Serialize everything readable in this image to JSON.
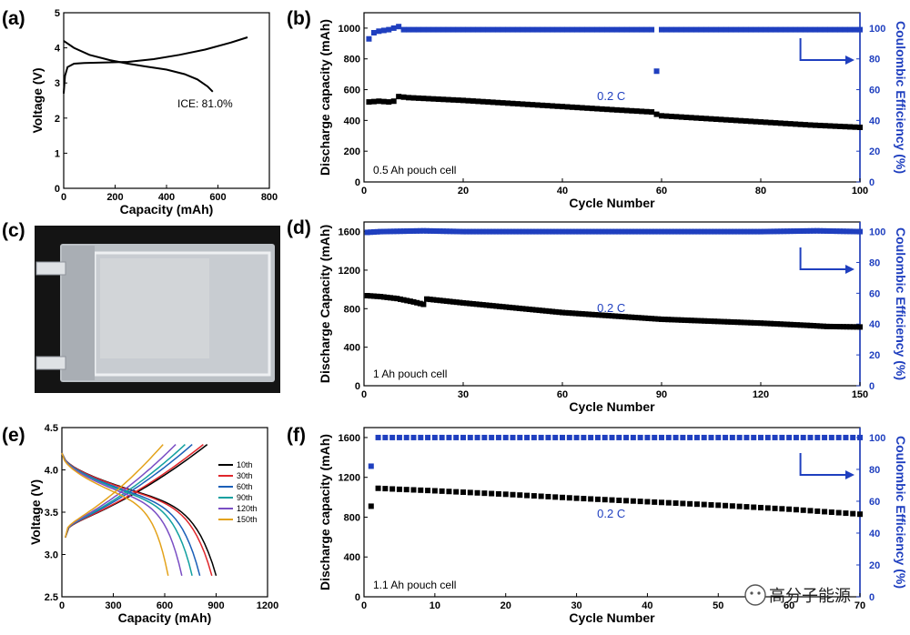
{
  "colors": {
    "black_series": "#000000",
    "blue_series": "#1f3fbf",
    "photo_bg": "#121212",
    "pouch": "#c9cdd2"
  },
  "watermark": {
    "text": "高分子能源",
    "icon": "wechat-icon"
  },
  "photo": {
    "label": "(c)",
    "description_icon": "pouch-cell-photo"
  },
  "chart_data": [
    {
      "id": "a",
      "label": "(a)",
      "type": "line",
      "xlabel": "Capacity (mAh)",
      "ylabel": "Voltage (V)",
      "xlim": [
        0,
        800
      ],
      "ylim": [
        0,
        5
      ],
      "xticks": [
        0,
        200,
        400,
        600,
        800
      ],
      "yticks": [
        0,
        1,
        2,
        3,
        4,
        5
      ],
      "annotation": "ICE: 81.0%",
      "series": [
        {
          "name": "charge",
          "color": "#000000",
          "x": [
            0,
            5,
            15,
            40,
            80,
            150,
            250,
            350,
            450,
            550,
            650,
            715
          ],
          "y": [
            2.7,
            3.2,
            3.45,
            3.55,
            3.57,
            3.58,
            3.6,
            3.68,
            3.8,
            3.95,
            4.15,
            4.3
          ]
        },
        {
          "name": "discharge",
          "color": "#000000",
          "x": [
            0,
            40,
            100,
            180,
            250,
            320,
            400,
            470,
            520,
            560,
            580
          ],
          "y": [
            4.2,
            4.0,
            3.8,
            3.65,
            3.55,
            3.47,
            3.38,
            3.25,
            3.1,
            2.9,
            2.75
          ]
        }
      ]
    },
    {
      "id": "b",
      "label": "(b)",
      "type": "scatter",
      "xlabel": "Cycle Number",
      "ylabel": "Discharge capacity (mAh)",
      "ylabel_right": "Coulombic Efficiency (%)",
      "xlim": [
        0,
        100
      ],
      "ylim": [
        0,
        1100
      ],
      "ylim_right": [
        0,
        110
      ],
      "xticks": [
        0,
        20,
        40,
        60,
        80,
        100
      ],
      "yticks": [
        0,
        200,
        400,
        600,
        800,
        1000
      ],
      "yticks_right": [
        0,
        20,
        40,
        60,
        80,
        100
      ],
      "annotation": "0.2 C",
      "cell_label": "0.5 Ah pouch cell",
      "capacity": {
        "x": [
          1,
          3,
          5,
          6,
          7,
          9,
          20,
          30,
          40,
          50,
          58,
          59,
          60,
          70,
          80,
          90,
          100
        ],
        "y": [
          520,
          525,
          520,
          525,
          555,
          548,
          530,
          510,
          490,
          470,
          455,
          440,
          430,
          410,
          390,
          370,
          355
        ]
      },
      "efficiency": {
        "x": [
          1,
          2,
          3,
          5,
          7,
          8,
          20,
          40,
          58,
          59,
          60,
          80,
          100
        ],
        "y": [
          93,
          97,
          98,
          99,
          101,
          99,
          99,
          99,
          99,
          72,
          99,
          99,
          99
        ]
      }
    },
    {
      "id": "d",
      "label": "(d)",
      "type": "scatter",
      "xlabel": "Cycle Number",
      "ylabel": "Discharge Capacity (mAh)",
      "ylabel_right": "Coulombic Efficiency (%)",
      "xlim": [
        0,
        150
      ],
      "ylim": [
        0,
        1700
      ],
      "ylim_right": [
        0,
        106.25
      ],
      "xticks": [
        0,
        30,
        60,
        90,
        120,
        150
      ],
      "yticks": [
        0,
        400,
        800,
        1200,
        1600
      ],
      "yticks_right": [
        0,
        20,
        40,
        60,
        80,
        100
      ],
      "annotation": "0.2 C",
      "cell_label": "1 Ah pouch cell",
      "capacity": {
        "x": [
          1,
          5,
          10,
          15,
          18,
          19,
          30,
          60,
          90,
          120,
          135,
          140,
          150
        ],
        "y": [
          935,
          925,
          905,
          870,
          845,
          900,
          860,
          760,
          690,
          650,
          625,
          615,
          610
        ]
      },
      "efficiency": {
        "x": [
          1,
          5,
          18,
          30,
          60,
          90,
          120,
          137,
          150
        ],
        "y": [
          99.5,
          100,
          100.5,
          100,
          100,
          100,
          100,
          100.5,
          100
        ]
      }
    },
    {
      "id": "e",
      "label": "(e)",
      "type": "line",
      "xlabel": "Capacity (mAh)",
      "ylabel": "Voltage (V)",
      "xlim": [
        0,
        1200
      ],
      "ylim": [
        2.5,
        4.5
      ],
      "xticks": [
        0,
        300,
        600,
        900,
        1200
      ],
      "yticks": [
        2.5,
        3.0,
        3.5,
        4.0,
        4.5
      ],
      "legend_position": "right",
      "series": [
        {
          "name": "10th",
          "color": "#000000",
          "cap": 900
        },
        {
          "name": "30th",
          "color": "#e0262b",
          "cap": 875
        },
        {
          "name": "60th",
          "color": "#1b5fb8",
          "cap": 805
        },
        {
          "name": "90th",
          "color": "#12a0a0",
          "cap": 760
        },
        {
          "name": "120th",
          "color": "#7a4ec4",
          "cap": 700
        },
        {
          "name": "150th",
          "color": "#e3a21a",
          "cap": 620
        }
      ]
    },
    {
      "id": "f",
      "label": "(f)",
      "type": "scatter",
      "xlabel": "Cycle Number",
      "ylabel": "Discharge capacity (mAh)",
      "ylabel_right": "Coulombic Efficiency (%)",
      "xlim": [
        0,
        70
      ],
      "ylim": [
        0,
        1700
      ],
      "ylim_right": [
        0,
        106.25
      ],
      "xticks": [
        0,
        10,
        20,
        30,
        40,
        50,
        60,
        70
      ],
      "yticks": [
        0,
        400,
        800,
        1200,
        1600
      ],
      "yticks_right": [
        0,
        20,
        40,
        60,
        80,
        100
      ],
      "annotation": "0.2 C",
      "cell_label": "1.1 Ah pouch cell",
      "capacity": {
        "x": [
          1,
          2,
          5,
          10,
          20,
          30,
          40,
          50,
          60,
          70
        ],
        "y": [
          910,
          1090,
          1080,
          1065,
          1030,
          990,
          955,
          920,
          880,
          830
        ]
      },
      "efficiency": {
        "x": [
          1,
          2,
          5,
          10,
          20,
          40,
          60,
          70
        ],
        "y": [
          82,
          100,
          100,
          100,
          100,
          100,
          100,
          100
        ]
      }
    }
  ]
}
